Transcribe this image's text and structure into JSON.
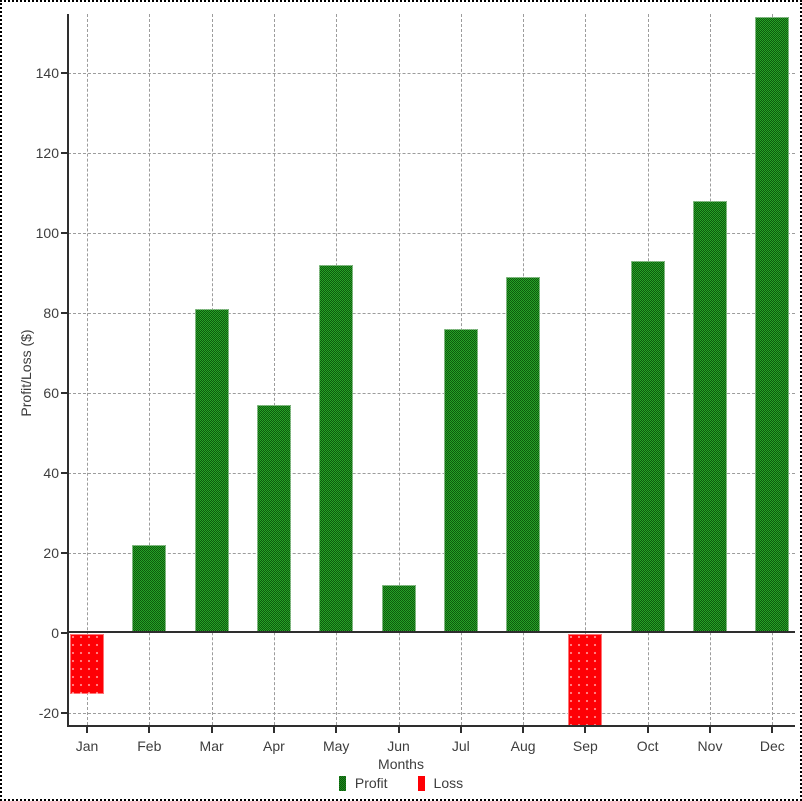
{
  "chart_data": {
    "type": "bar",
    "title": "",
    "categories": [
      "Jan",
      "Feb",
      "Mar",
      "Apr",
      "May",
      "Jun",
      "Jul",
      "Aug",
      "Sep",
      "Oct",
      "Nov",
      "Dec"
    ],
    "values": [
      -15,
      22,
      81,
      57,
      92,
      12,
      76,
      89,
      -23,
      93,
      108,
      154
    ],
    "xlabel": "Months",
    "ylabel": "Profit/Loss ($)",
    "yticks": [
      -20,
      0,
      20,
      40,
      60,
      80,
      100,
      120,
      140
    ],
    "ylim": [
      -23.3,
      154.8
    ],
    "grid": "dashed",
    "legend": {
      "position": "bottom",
      "entries": [
        {
          "label": "Profit",
          "color": "#1f8a1f"
        },
        {
          "label": "Loss",
          "color": "#ff0000"
        }
      ]
    },
    "colors": {
      "profit_bar": "#1f8a1f",
      "loss_bar": "#ff0000",
      "axis": "#2e2e2e",
      "gridline": "#9c9c9c",
      "text": "#3d3d3d"
    }
  }
}
